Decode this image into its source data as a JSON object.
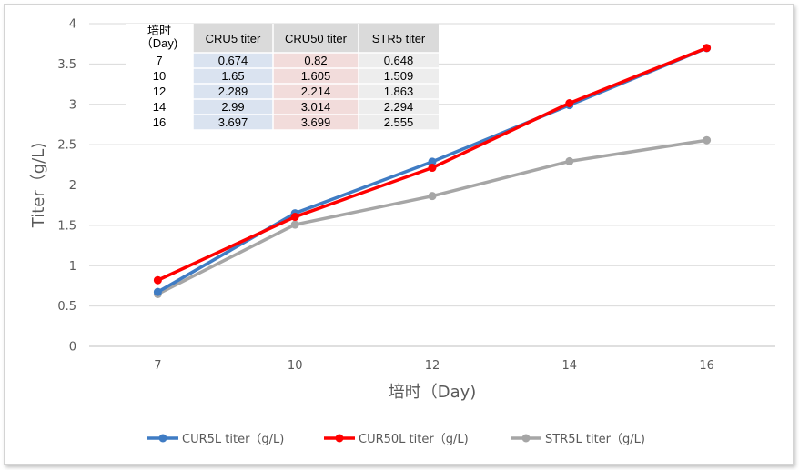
{
  "chart_data": {
    "type": "line",
    "title": "",
    "xlabel": "培时（Day)",
    "ylabel": "Titer（g/L)",
    "categories": [
      "7",
      "10",
      "12",
      "14",
      "16"
    ],
    "ylim": [
      0,
      4
    ],
    "yticks": [
      "0",
      "0.5",
      "1",
      "1.5",
      "2",
      "2.5",
      "3",
      "3.5",
      "4"
    ],
    "grid": true,
    "legend_position": "bottom",
    "series": [
      {
        "name": "CUR5L titer（g/L)",
        "color": "#3f7cc4",
        "values": [
          0.674,
          1.65,
          2.289,
          2.99,
          3.697
        ]
      },
      {
        "name": "CUR50L titer（g/L)",
        "color": "#ff0000",
        "values": [
          0.82,
          1.605,
          2.214,
          3.014,
          3.699
        ]
      },
      {
        "name": "STR5L titer（g/L)",
        "color": "#a6a6a6",
        "values": [
          0.648,
          1.509,
          1.863,
          2.294,
          2.555
        ]
      }
    ],
    "table": {
      "header": [
        "培时\n（Day)",
        "CRU5 titer",
        "CRU50 titer",
        "STR5 titer"
      ],
      "rows": [
        [
          "7",
          "0.674",
          "0.82",
          "0.648"
        ],
        [
          "10",
          "1.65",
          "1.605",
          "1.509"
        ],
        [
          "12",
          "2.289",
          "2.214",
          "1.863"
        ],
        [
          "14",
          "2.99",
          "3.014",
          "2.294"
        ],
        [
          "16",
          "3.697",
          "3.699",
          "2.555"
        ]
      ]
    }
  }
}
